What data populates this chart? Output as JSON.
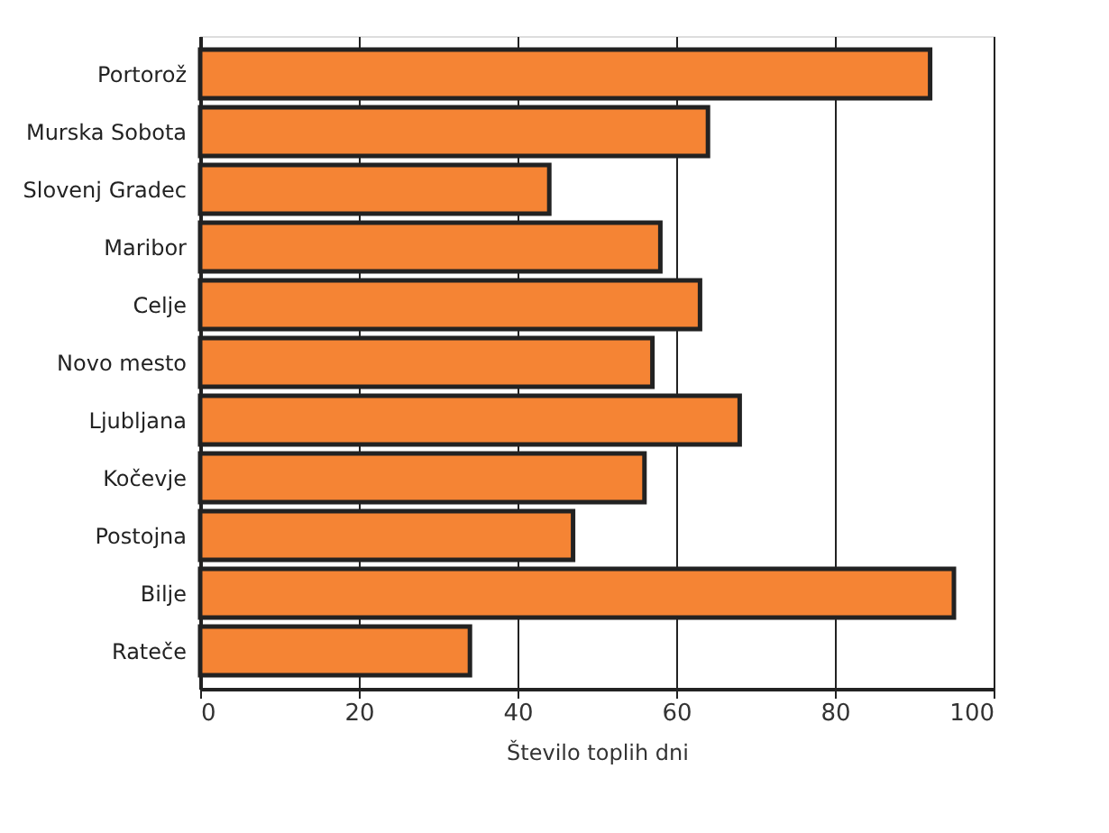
{
  "chart_data": {
    "type": "bar",
    "orientation": "horizontal",
    "xlabel": "Število toplih dni",
    "categories": [
      "Portorož",
      "Murska Sobota",
      "Slovenj Gradec",
      "Maribor",
      "Celje",
      "Novo mesto",
      "Ljubljana",
      "Kočevje",
      "Postojna",
      "Bilje",
      "Rateče"
    ],
    "values": [
      92,
      64,
      44,
      58,
      63,
      57,
      68,
      56,
      47,
      95,
      34
    ],
    "color": "#f58434",
    "xlim": [
      0,
      100
    ],
    "xticks": [
      0,
      20,
      40,
      60,
      80,
      100
    ],
    "grid": "x"
  }
}
